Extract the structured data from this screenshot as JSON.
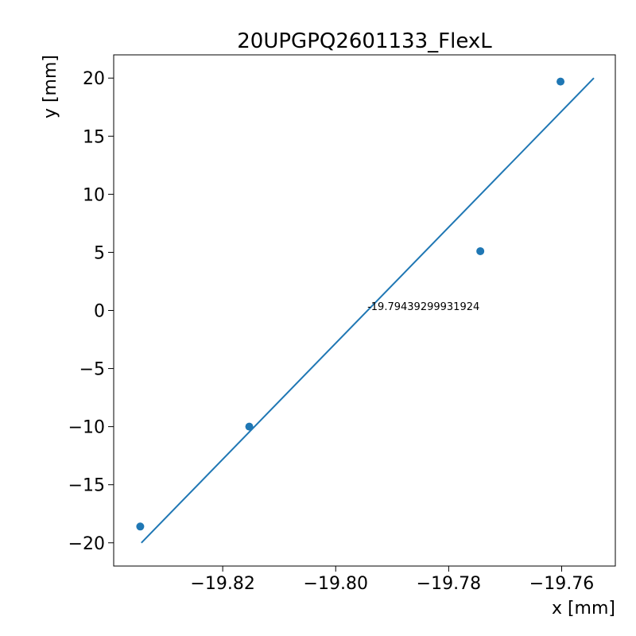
{
  "chart_data": {
    "type": "scatter",
    "title": "20UPGPQ2601133_FlexL",
    "xlabel": "x [mm]",
    "ylabel": "y [mm]",
    "xlim": [
      -19.8393,
      -19.7505
    ],
    "ylim": [
      -22,
      22
    ],
    "xticks": [
      -19.82,
      -19.8,
      -19.78,
      -19.76
    ],
    "xtick_labels": [
      "−19.82",
      "−19.80",
      "−19.78",
      "−19.76"
    ],
    "yticks": [
      -20,
      -15,
      -10,
      -5,
      0,
      5,
      10,
      15,
      20
    ],
    "ytick_labels": [
      "−20",
      "−15",
      "−10",
      "−5",
      "0",
      "5",
      "10",
      "15",
      "20"
    ],
    "grid": false,
    "series": [
      {
        "type": "scatter",
        "x": [
          -19.8346,
          -19.8153,
          -19.7744,
          -19.7602
        ],
        "y": [
          -18.6,
          -10.0,
          5.1,
          19.7
        ]
      },
      {
        "type": "line",
        "x": [
          -19.8344,
          -19.7543
        ],
        "y": [
          -20.0,
          20.0
        ]
      }
    ],
    "annotation": {
      "text": "-19.79439299931924",
      "x": -19.79439299931924,
      "y": 0
    },
    "colors": {
      "series": "#1f77b4",
      "axes": "#000000",
      "background": "#ffffff"
    }
  }
}
